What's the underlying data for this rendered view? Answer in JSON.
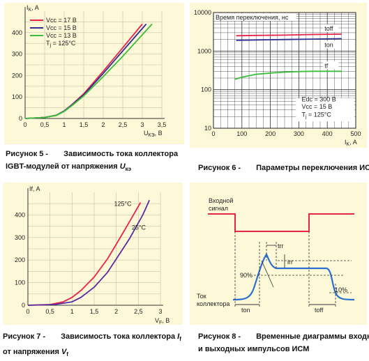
{
  "palette": {
    "bg": "#fdf8d8",
    "red": "#e8244a",
    "blue": "#2f2f91",
    "green": "#3cbd3c",
    "purple": "#5a2aa0",
    "axis": "#333333"
  },
  "captions": {
    "fig5": {
      "num": "Рисунок 5 -",
      "line1": "Зависимость тока коллектора",
      "line2_pre": "IGBT-модулей от напряжения ",
      "line2_var": "U",
      "line2_sub": "кэ"
    },
    "fig6": {
      "num": "Рисунок 6 -",
      "line1": "Параметры переключения ИСМ"
    },
    "fig7": {
      "num": "Рисунок 7 -",
      "line1_pre": "Зависимость тока коллектора ",
      "line1_var": "I",
      "line1_sub": "f",
      "line2_pre": "от напряжения ",
      "line2_var": "V",
      "line2_sub": "f"
    },
    "fig8": {
      "num": "Рисунок 8 -",
      "line1": "Временные диаграммы входных",
      "line2": "и выходных импульсов ИСМ"
    }
  },
  "chart_data": [
    {
      "id": "fig5",
      "type": "line",
      "ylabel": "I",
      "ylabel_sub": "K",
      "ylabel_unit": ", A",
      "xlabel": "U",
      "xlabel_sub": "КЭ",
      "xlabel_unit": ", В",
      "xlim": [
        0,
        3.5
      ],
      "ylim": [
        0,
        500
      ],
      "xticks": [
        0,
        0.5,
        1,
        1.5,
        2,
        2.5,
        3,
        3.5
      ],
      "xtick_labels": [
        "0",
        "0,5",
        "1",
        "1,5",
        "2",
        "2,5",
        "3",
        "3,5"
      ],
      "yticks": [
        0,
        100,
        200,
        300,
        400
      ],
      "ytick_labels": [
        "0",
        "100",
        "200",
        "300",
        "400"
      ],
      "legend": [
        "Vcc  = 17 В",
        "Vcc  = 15 В",
        "Vcc  = 13 В"
      ],
      "legend_note": "T",
      "legend_note_sub": "j",
      "legend_note_tail": " = 125°C",
      "series": [
        {
          "color": "red",
          "x": [
            0,
            0.5,
            0.8,
            1.0,
            1.2,
            1.5,
            2.0,
            2.5,
            3.0
          ],
          "y": [
            0,
            5,
            15,
            35,
            65,
            115,
            220,
            330,
            440
          ]
        },
        {
          "color": "blue",
          "x": [
            0,
            0.5,
            0.8,
            1.0,
            1.2,
            1.5,
            2.0,
            2.5,
            3.1
          ],
          "y": [
            0,
            5,
            15,
            35,
            63,
            110,
            210,
            315,
            440
          ]
        },
        {
          "color": "green",
          "x": [
            0,
            0.5,
            0.8,
            1.0,
            1.2,
            1.5,
            2.0,
            2.5,
            3.25
          ],
          "y": [
            0,
            5,
            14,
            33,
            60,
            105,
            195,
            290,
            440
          ]
        }
      ]
    },
    {
      "id": "fig6",
      "type": "line",
      "title": "Время переключения, нс",
      "xlabel": "I",
      "xlabel_sub": "K",
      "xlabel_unit": ", A",
      "xlim": [
        0,
        500
      ],
      "ylim": [
        10,
        10000
      ],
      "yscale": "log",
      "xticks": [
        0,
        100,
        200,
        300,
        400,
        500
      ],
      "yticks": [
        10,
        100,
        1000,
        10000
      ],
      "ytick_labels": [
        "10",
        "100",
        "1000",
        "10000"
      ],
      "conditions": [
        "Edc  =  300 В",
        "Vcc  =  15 В",
        "T",
        "= 125°C"
      ],
      "series": [
        {
          "name": "toff",
          "color": "red",
          "x": [
            80,
            150,
            250,
            350,
            450
          ],
          "y": [
            2500,
            2550,
            2600,
            2700,
            2750
          ]
        },
        {
          "name": "ton",
          "color": "blue",
          "x": [
            80,
            150,
            250,
            350,
            450
          ],
          "y": [
            1900,
            1950,
            2000,
            2050,
            2100
          ]
        },
        {
          "name": "tf",
          "color": "green",
          "x": [
            75,
            100,
            150,
            200,
            250,
            300,
            350,
            400,
            450
          ],
          "y": [
            185,
            210,
            250,
            270,
            285,
            295,
            300,
            300,
            300
          ]
        }
      ]
    },
    {
      "id": "fig7",
      "type": "line",
      "ylabel": "If, A",
      "xlabel": "V",
      "xlabel_sub": "F",
      "xlabel_unit": ", В",
      "xlim": [
        0,
        3
      ],
      "ylim": [
        0,
        500
      ],
      "xticks": [
        0,
        0.5,
        1,
        1.5,
        2,
        2.5,
        3
      ],
      "xtick_labels": [
        "0",
        "0,5",
        "1",
        "1,5",
        "2",
        "2,5",
        "3"
      ],
      "yticks": [
        0,
        100,
        200,
        300,
        400
      ],
      "ytick_labels": [
        "0",
        "100",
        "200",
        "300",
        "400"
      ],
      "series": [
        {
          "name": "125°C",
          "color": "red",
          "x": [
            0,
            0.5,
            0.8,
            1.0,
            1.2,
            1.5,
            1.8,
            2.0,
            2.3,
            2.55
          ],
          "y": [
            0,
            3,
            15,
            35,
            65,
            125,
            205,
            270,
            370,
            455
          ]
        },
        {
          "name": "25°C",
          "color": "purple",
          "x": [
            0,
            0.6,
            1.0,
            1.2,
            1.5,
            1.8,
            2.0,
            2.3,
            2.6,
            2.75
          ],
          "y": [
            0,
            3,
            15,
            35,
            80,
            145,
            205,
            295,
            400,
            465
          ]
        }
      ]
    },
    {
      "id": "fig8",
      "type": "line",
      "labels": {
        "input": [
          "Входной",
          "сигнал"
        ],
        "collector": [
          "Ток",
          "коллектора"
        ],
        "trr": "trr",
        "irr": "irr",
        "p90": "90%",
        "p10": "10%",
        "ton": "ton",
        "toff": "toff"
      }
    }
  ]
}
